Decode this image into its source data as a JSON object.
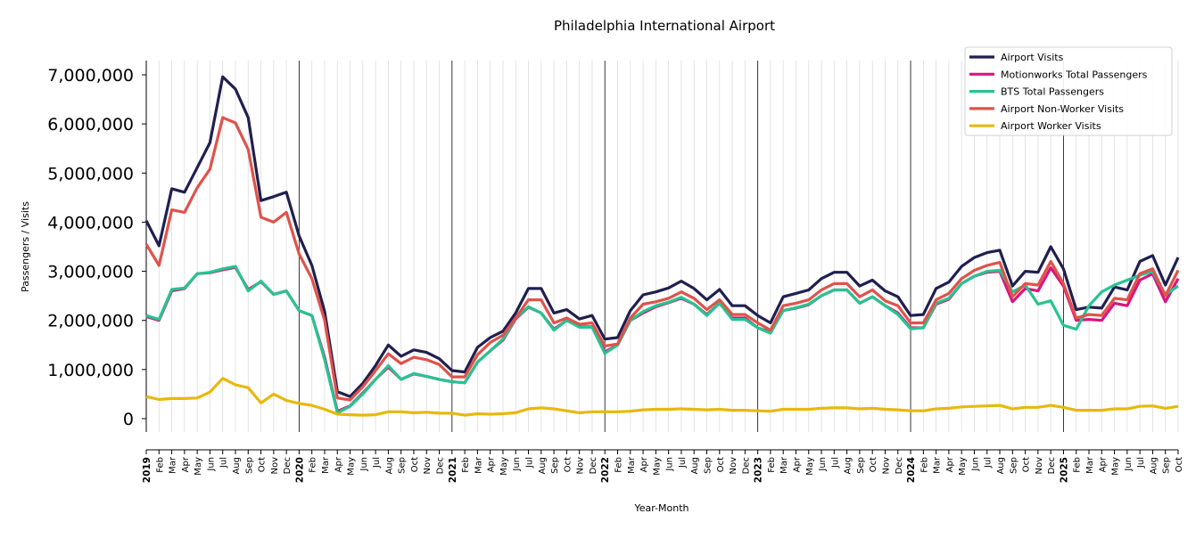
{
  "chart_data": {
    "type": "line",
    "title": "Philadelphia International Airport",
    "xlabel": "Year-Month",
    "ylabel": "Passengers / Visits",
    "ylim": [
      -300000,
      7300000
    ],
    "yticks": [
      0,
      1000000,
      2000000,
      3000000,
      4000000,
      5000000,
      6000000,
      7000000
    ],
    "ytick_labels": [
      "0",
      "1,000,000",
      "2,000,000",
      "3,000,000",
      "4,000,000",
      "5,000,000",
      "6,000,000",
      "7,000,000"
    ],
    "x_start": "2019-01",
    "x_end": "2025-10",
    "years": [
      "2019",
      "2020",
      "2021",
      "2022",
      "2023",
      "2024",
      "2025"
    ],
    "month_labels": [
      "Feb",
      "Mar",
      "Apr",
      "May",
      "Jun",
      "Jul",
      "Aug",
      "Sep",
      "Oct",
      "Nov",
      "Dec"
    ],
    "grid": "vertical monthly lines, darker lines at each year start",
    "legend_placement": "top-right",
    "series": [
      {
        "name": "Airport Visits",
        "color": "#1f1f4f",
        "values": [
          4030000,
          3520000,
          4680000,
          4610000,
          5110000,
          5620000,
          6960000,
          6710000,
          6130000,
          4440000,
          4520000,
          4610000,
          3720000,
          3120000,
          2180000,
          550000,
          450000,
          720000,
          1080000,
          1500000,
          1270000,
          1400000,
          1350000,
          1220000,
          980000,
          950000,
          1450000,
          1650000,
          1780000,
          2150000,
          2650000,
          2650000,
          2150000,
          2220000,
          2030000,
          2100000,
          1620000,
          1650000,
          2200000,
          2520000,
          2580000,
          2660000,
          2800000,
          2650000,
          2420000,
          2630000,
          2300000,
          2300000,
          2100000,
          1950000,
          2480000,
          2550000,
          2620000,
          2850000,
          2980000,
          2980000,
          2700000,
          2820000,
          2600000,
          2480000,
          2100000,
          2120000,
          2650000,
          2780000,
          3100000,
          3280000,
          3380000,
          3430000,
          2700000,
          3000000,
          2980000,
          3500000,
          3050000,
          2220000,
          2270000,
          2250000,
          2680000,
          2620000,
          3200000,
          3320000,
          2720000,
          3280000
        ]
      },
      {
        "name": "Motionworks Total Passengers",
        "color": "#d6167f",
        "values": [
          2080000,
          2000000,
          2600000,
          2650000,
          2950000,
          2970000,
          3030000,
          3080000,
          2630000,
          2790000,
          2530000,
          2600000,
          2200000,
          2100000,
          1250000,
          150000,
          260000,
          520000,
          800000,
          1050000,
          800000,
          910000,
          860000,
          800000,
          750000,
          730000,
          1150000,
          1380000,
          1600000,
          2030000,
          2270000,
          2150000,
          1820000,
          2000000,
          1870000,
          1870000,
          1360000,
          1500000,
          2000000,
          2150000,
          2280000,
          2360000,
          2450000,
          2330000,
          2120000,
          2350000,
          2050000,
          2050000,
          1850000,
          1760000,
          2200000,
          2250000,
          2320000,
          2500000,
          2620000,
          2620000,
          2350000,
          2480000,
          2300000,
          2150000,
          1850000,
          1850000,
          2330000,
          2430000,
          2750000,
          2900000,
          2980000,
          3000000,
          2380000,
          2650000,
          2600000,
          3070000,
          2700000,
          2000000,
          2020000,
          2000000,
          2350000,
          2300000,
          2820000,
          2950000,
          2380000,
          2850000
        ]
      },
      {
        "name": "BTS Total Passengers",
        "color": "#26c490",
        "values": [
          2100000,
          2020000,
          2630000,
          2660000,
          2950000,
          2980000,
          3050000,
          3100000,
          2600000,
          2800000,
          2530000,
          2600000,
          2200000,
          2100000,
          1200000,
          120000,
          250000,
          500000,
          800000,
          1080000,
          800000,
          920000,
          860000,
          800000,
          750000,
          730000,
          1150000,
          1380000,
          1620000,
          2050000,
          2280000,
          2150000,
          1800000,
          2000000,
          1860000,
          1860000,
          1330000,
          1500000,
          2000000,
          2180000,
          2300000,
          2370000,
          2470000,
          2330000,
          2100000,
          2350000,
          2020000,
          2020000,
          1850000,
          1740000,
          2200000,
          2260000,
          2330000,
          2500000,
          2620000,
          2620000,
          2350000,
          2480000,
          2300000,
          2120000,
          1830000,
          1850000,
          2350000,
          2450000,
          2750000,
          2900000,
          3000000,
          3020000,
          2580000,
          2720000,
          2330000,
          2400000,
          1900000,
          1820000,
          2300000,
          2580000,
          2720000,
          2820000,
          2920000,
          3000000,
          2520000,
          2700000
        ]
      },
      {
        "name": "Airport Non-Worker Visits",
        "color": "#e0524a",
        "values": [
          3550000,
          3120000,
          4250000,
          4200000,
          4700000,
          5080000,
          6130000,
          6020000,
          5480000,
          4100000,
          4000000,
          4200000,
          3350000,
          2850000,
          2000000,
          420000,
          380000,
          650000,
          980000,
          1320000,
          1120000,
          1250000,
          1200000,
          1100000,
          850000,
          850000,
          1300000,
          1550000,
          1700000,
          2050000,
          2420000,
          2420000,
          1950000,
          2050000,
          1920000,
          1950000,
          1480000,
          1520000,
          2050000,
          2330000,
          2380000,
          2450000,
          2580000,
          2450000,
          2220000,
          2420000,
          2120000,
          2120000,
          1950000,
          1800000,
          2300000,
          2350000,
          2420000,
          2620000,
          2750000,
          2750000,
          2480000,
          2620000,
          2400000,
          2300000,
          1950000,
          1950000,
          2420000,
          2550000,
          2850000,
          3020000,
          3120000,
          3180000,
          2480000,
          2750000,
          2720000,
          3200000,
          2750000,
          2050000,
          2120000,
          2100000,
          2450000,
          2420000,
          2950000,
          3050000,
          2500000,
          3020000
        ]
      },
      {
        "name": "Airport Worker Visits",
        "color": "#e8b80c",
        "values": [
          450000,
          390000,
          410000,
          410000,
          420000,
          540000,
          820000,
          690000,
          630000,
          320000,
          500000,
          370000,
          310000,
          270000,
          190000,
          90000,
          80000,
          70000,
          80000,
          140000,
          140000,
          120000,
          130000,
          110000,
          110000,
          70000,
          100000,
          90000,
          100000,
          120000,
          200000,
          220000,
          200000,
          160000,
          120000,
          140000,
          140000,
          140000,
          150000,
          180000,
          190000,
          190000,
          200000,
          190000,
          180000,
          190000,
          170000,
          170000,
          160000,
          150000,
          190000,
          190000,
          190000,
          210000,
          220000,
          220000,
          200000,
          210000,
          190000,
          180000,
          160000,
          160000,
          200000,
          210000,
          240000,
          250000,
          260000,
          270000,
          200000,
          230000,
          230000,
          270000,
          230000,
          170000,
          170000,
          170000,
          200000,
          200000,
          250000,
          260000,
          210000,
          250000
        ]
      }
    ]
  }
}
